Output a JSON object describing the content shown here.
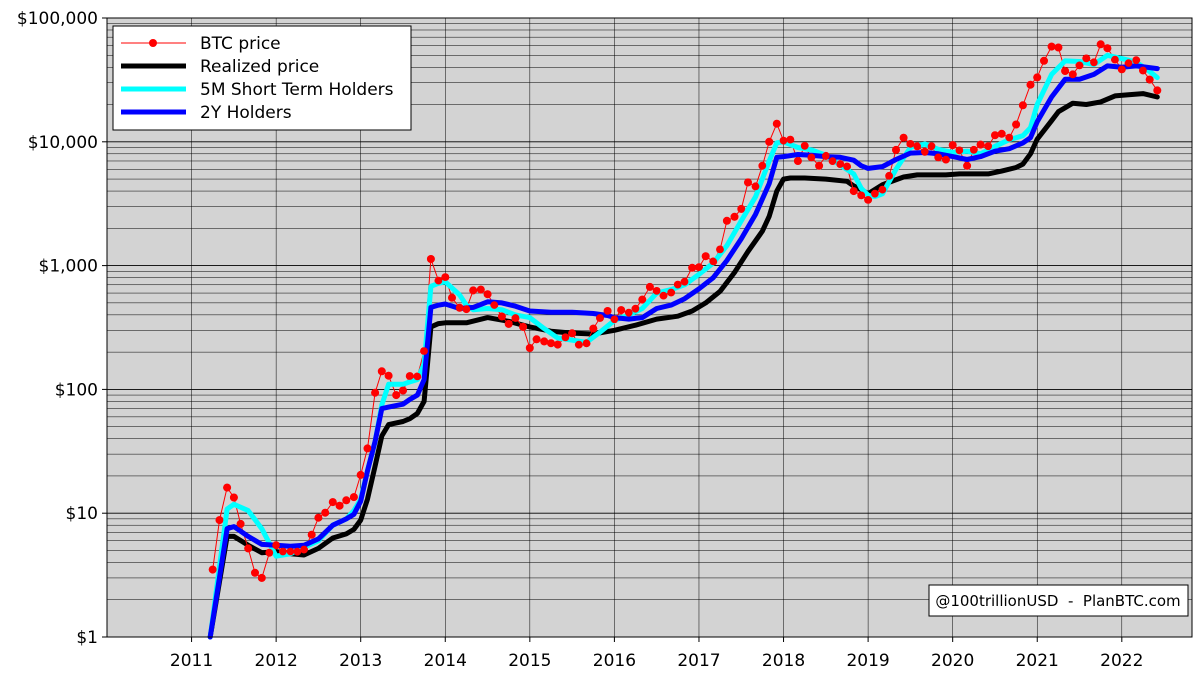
{
  "colors": {
    "btc": "#ff0000",
    "realized": "#000000",
    "sth": "#00ffff",
    "holders2y": "#0000ff",
    "plot_bg": "#d3d3d3",
    "grid": "#000000"
  },
  "annotation": "@100trillionUSD  -  PlanBTC.com",
  "chart_data": {
    "type": "line",
    "title": "",
    "xlabel": "",
    "ylabel": "",
    "y_scale": "log",
    "ylim": [
      1,
      100000
    ],
    "xlim": [
      2010.0,
      2022.83
    ],
    "grid": true,
    "legend_position": "top-left",
    "y_ticks": [
      {
        "value": 1,
        "label": "$1"
      },
      {
        "value": 10,
        "label": "$10"
      },
      {
        "value": 100,
        "label": "$100"
      },
      {
        "value": 1000,
        "label": "$1,000"
      },
      {
        "value": 10000,
        "label": "$10,000"
      },
      {
        "value": 100000,
        "label": "$100,000"
      }
    ],
    "x_ticks": [
      {
        "value": 2011,
        "label": "2011"
      },
      {
        "value": 2012,
        "label": "2012"
      },
      {
        "value": 2013,
        "label": "2013"
      },
      {
        "value": 2014,
        "label": "2014"
      },
      {
        "value": 2015,
        "label": "2015"
      },
      {
        "value": 2016,
        "label": "2016"
      },
      {
        "value": 2017,
        "label": "2017"
      },
      {
        "value": 2018,
        "label": "2018"
      },
      {
        "value": 2019,
        "label": "2019"
      },
      {
        "value": 2020,
        "label": "2020"
      },
      {
        "value": 2021,
        "label": "2021"
      },
      {
        "value": 2022,
        "label": "2022"
      }
    ],
    "series": [
      {
        "name": "BTC price",
        "key": "btc",
        "style": "markers",
        "x": [
          2011.25,
          2011.33,
          2011.42,
          2011.5,
          2011.58,
          2011.67,
          2011.75,
          2011.83,
          2011.92,
          2012.0,
          2012.08,
          2012.17,
          2012.25,
          2012.33,
          2012.42,
          2012.5,
          2012.58,
          2012.67,
          2012.75,
          2012.83,
          2012.92,
          2013.0,
          2013.08,
          2013.17,
          2013.25,
          2013.33,
          2013.42,
          2013.5,
          2013.58,
          2013.67,
          2013.75,
          2013.83,
          2013.92,
          2014.0,
          2014.08,
          2014.17,
          2014.25,
          2014.33,
          2014.42,
          2014.5,
          2014.58,
          2014.67,
          2014.75,
          2014.83,
          2014.92,
          2015.0,
          2015.08,
          2015.17,
          2015.25,
          2015.33,
          2015.42,
          2015.5,
          2015.58,
          2015.67,
          2015.75,
          2015.83,
          2015.92,
          2016.0,
          2016.08,
          2016.17,
          2016.25,
          2016.33,
          2016.42,
          2016.5,
          2016.58,
          2016.67,
          2016.75,
          2016.83,
          2016.92,
          2017.0,
          2017.08,
          2017.17,
          2017.25,
          2017.33,
          2017.42,
          2017.5,
          2017.58,
          2017.67,
          2017.75,
          2017.83,
          2017.92,
          2018.0,
          2018.08,
          2018.17,
          2018.25,
          2018.33,
          2018.42,
          2018.5,
          2018.58,
          2018.67,
          2018.75,
          2018.83,
          2018.92,
          2019.0,
          2019.08,
          2019.17,
          2019.25,
          2019.33,
          2019.42,
          2019.5,
          2019.58,
          2019.67,
          2019.75,
          2019.83,
          2019.92,
          2020.0,
          2020.08,
          2020.17,
          2020.25,
          2020.33,
          2020.42,
          2020.5,
          2020.58,
          2020.67,
          2020.75,
          2020.83,
          2020.92,
          2021.0,
          2021.08,
          2021.17,
          2021.25,
          2021.33,
          2021.42,
          2021.5,
          2021.58,
          2021.67,
          2021.75,
          2021.83,
          2021.92,
          2022.0,
          2022.08,
          2022.17,
          2022.25,
          2022.33,
          2022.42
        ],
        "y": [
          3.5,
          8.8,
          16.1,
          13.4,
          8.2,
          5.2,
          3.3,
          3.0,
          4.8,
          5.5,
          4.9,
          4.9,
          4.9,
          5.1,
          6.7,
          9.2,
          10.1,
          12.3,
          11.5,
          12.7,
          13.5,
          20.4,
          33.4,
          94,
          140,
          129,
          90,
          98,
          128,
          127,
          204,
          1130,
          755,
          806,
          550,
          456,
          445,
          630,
          640,
          588,
          480,
          389,
          338,
          378,
          320,
          216,
          254,
          244,
          236,
          230,
          263,
          284,
          230,
          236,
          310,
          378,
          430,
          368,
          437,
          416,
          448,
          531,
          673,
          624,
          573,
          608,
          701,
          740,
          960,
          970,
          1190,
          1080,
          1350,
          2300,
          2480,
          2870,
          4700,
          4360,
          6400,
          10000,
          14000,
          10200,
          10400,
          7000,
          9240,
          7500,
          6400,
          7700,
          7000,
          6600,
          6300,
          4000,
          3700,
          3400,
          3800,
          4100,
          5300,
          8600,
          10800,
          9600,
          9200,
          8300,
          9200,
          7500,
          7200,
          9400,
          8500,
          6400,
          8600,
          9500,
          9200,
          11300,
          11600,
          10800,
          13800,
          19700,
          28900,
          33100,
          45100,
          58800,
          57800,
          37300,
          35000,
          41500,
          47100,
          43800,
          61300,
          57000,
          46200,
          38500,
          43200,
          45500,
          37700,
          31800,
          26000
        ]
      },
      {
        "name": "Realized price",
        "key": "realized",
        "style": "line",
        "x": [
          2011.22,
          2011.42,
          2011.5,
          2011.67,
          2011.83,
          2012.0,
          2012.17,
          2012.33,
          2012.5,
          2012.67,
          2012.83,
          2012.92,
          2013.0,
          2013.08,
          2013.17,
          2013.25,
          2013.33,
          2013.5,
          2013.58,
          2013.67,
          2013.75,
          2013.83,
          2013.92,
          2014.0,
          2014.25,
          2014.5,
          2014.75,
          2015.0,
          2015.25,
          2015.5,
          2015.75,
          2016.0,
          2016.25,
          2016.5,
          2016.75,
          2016.92,
          2017.08,
          2017.25,
          2017.42,
          2017.58,
          2017.75,
          2017.83,
          2017.92,
          2018.0,
          2018.08,
          2018.25,
          2018.5,
          2018.75,
          2018.83,
          2018.92,
          2019.0,
          2019.17,
          2019.42,
          2019.58,
          2019.75,
          2019.92,
          2020.08,
          2020.25,
          2020.42,
          2020.58,
          2020.75,
          2020.83,
          2020.92,
          2021.0,
          2021.17,
          2021.25,
          2021.42,
          2021.58,
          2021.75,
          2021.92,
          2022.08,
          2022.25,
          2022.42
        ],
        "y": [
          1.0,
          6.5,
          6.5,
          5.5,
          4.8,
          4.9,
          4.7,
          4.6,
          5.2,
          6.3,
          6.8,
          7.4,
          8.8,
          13,
          24,
          42,
          52,
          55,
          58,
          64,
          80,
          320,
          340,
          345,
          345,
          380,
          355,
          320,
          295,
          285,
          280,
          300,
          330,
          370,
          390,
          430,
          500,
          620,
          880,
          1300,
          1900,
          2500,
          4000,
          5000,
          5100,
          5100,
          5000,
          4800,
          4400,
          4100,
          3800,
          4500,
          5200,
          5400,
          5400,
          5400,
          5500,
          5500,
          5500,
          5800,
          6200,
          6600,
          8000,
          10500,
          14800,
          17500,
          20500,
          20000,
          21000,
          23500,
          24000,
          24500,
          23000
        ]
      },
      {
        "name": "5M Short Term Holders",
        "key": "sth",
        "style": "line",
        "x": [
          2011.22,
          2011.42,
          2011.5,
          2011.67,
          2011.83,
          2012.0,
          2012.17,
          2012.33,
          2012.5,
          2012.67,
          2012.83,
          2012.92,
          2013.0,
          2013.08,
          2013.17,
          2013.25,
          2013.33,
          2013.5,
          2013.58,
          2013.67,
          2013.75,
          2013.83,
          2013.92,
          2014.0,
          2014.17,
          2014.25,
          2014.33,
          2014.5,
          2014.67,
          2014.83,
          2015.0,
          2015.17,
          2015.33,
          2015.5,
          2015.67,
          2015.83,
          2016.0,
          2016.17,
          2016.33,
          2016.5,
          2016.67,
          2016.83,
          2017.0,
          2017.17,
          2017.33,
          2017.5,
          2017.67,
          2017.83,
          2017.92,
          2018.0,
          2018.17,
          2018.33,
          2018.5,
          2018.67,
          2018.83,
          2018.92,
          2019.0,
          2019.08,
          2019.17,
          2019.33,
          2019.5,
          2019.67,
          2019.83,
          2020.0,
          2020.17,
          2020.33,
          2020.5,
          2020.67,
          2020.83,
          2020.92,
          2021.0,
          2021.17,
          2021.33,
          2021.5,
          2021.67,
          2021.83,
          2022.0,
          2022.17,
          2022.33,
          2022.42
        ],
        "y": [
          1.0,
          10.8,
          11.8,
          10.5,
          7.5,
          4.5,
          4.7,
          5.3,
          6.0,
          8.0,
          9.0,
          10.5,
          13,
          22,
          38,
          75,
          110,
          110,
          115,
          120,
          160,
          680,
          720,
          740,
          580,
          480,
          440,
          450,
          440,
          400,
          380,
          310,
          260,
          250,
          240,
          290,
          360,
          400,
          450,
          600,
          640,
          700,
          850,
          1050,
          1450,
          2300,
          3600,
          7000,
          9800,
          10000,
          9000,
          8600,
          7800,
          6500,
          5500,
          4200,
          3700,
          3600,
          3800,
          6000,
          9000,
          9600,
          8700,
          8200,
          8400,
          8000,
          9200,
          10400,
          11200,
          13000,
          20000,
          35000,
          45000,
          44500,
          42000,
          50000,
          47000,
          44000,
          37000,
          33000
        ]
      },
      {
        "name": "2Y Holders",
        "key": "holders2y",
        "style": "line",
        "x": [
          2011.22,
          2011.42,
          2011.5,
          2011.67,
          2011.83,
          2012.0,
          2012.17,
          2012.33,
          2012.5,
          2012.67,
          2012.83,
          2012.92,
          2013.0,
          2013.08,
          2013.17,
          2013.25,
          2013.33,
          2013.5,
          2013.58,
          2013.67,
          2013.75,
          2013.83,
          2013.92,
          2014.0,
          2014.17,
          2014.33,
          2014.5,
          2014.67,
          2014.83,
          2015.0,
          2015.25,
          2015.5,
          2015.75,
          2015.92,
          2016.0,
          2016.17,
          2016.33,
          2016.5,
          2016.67,
          2016.83,
          2017.0,
          2017.17,
          2017.33,
          2017.5,
          2017.67,
          2017.83,
          2017.92,
          2018.0,
          2018.17,
          2018.33,
          2018.5,
          2018.67,
          2018.83,
          2018.92,
          2019.0,
          2019.17,
          2019.33,
          2019.5,
          2019.67,
          2019.83,
          2020.0,
          2020.17,
          2020.33,
          2020.5,
          2020.67,
          2020.83,
          2020.92,
          2021.0,
          2021.17,
          2021.33,
          2021.5,
          2021.67,
          2021.83,
          2022.0,
          2022.17,
          2022.42
        ],
        "y": [
          1.0,
          7.5,
          7.8,
          6.5,
          5.6,
          5.5,
          5.4,
          5.5,
          6.2,
          8.0,
          9.0,
          9.8,
          12.5,
          22,
          38,
          70,
          72,
          76,
          83,
          90,
          120,
          460,
          480,
          490,
          450,
          460,
          510,
          500,
          470,
          430,
          420,
          420,
          410,
          395,
          380,
          370,
          380,
          450,
          480,
          540,
          650,
          800,
          1100,
          1650,
          2600,
          4600,
          7500,
          7600,
          7900,
          7800,
          7600,
          7500,
          7100,
          6400,
          6100,
          6300,
          7200,
          8100,
          8200,
          8000,
          7600,
          7200,
          7600,
          8400,
          8800,
          9800,
          10800,
          14500,
          23000,
          32000,
          32000,
          35000,
          41000,
          40000,
          41000,
          39000
        ]
      }
    ]
  }
}
